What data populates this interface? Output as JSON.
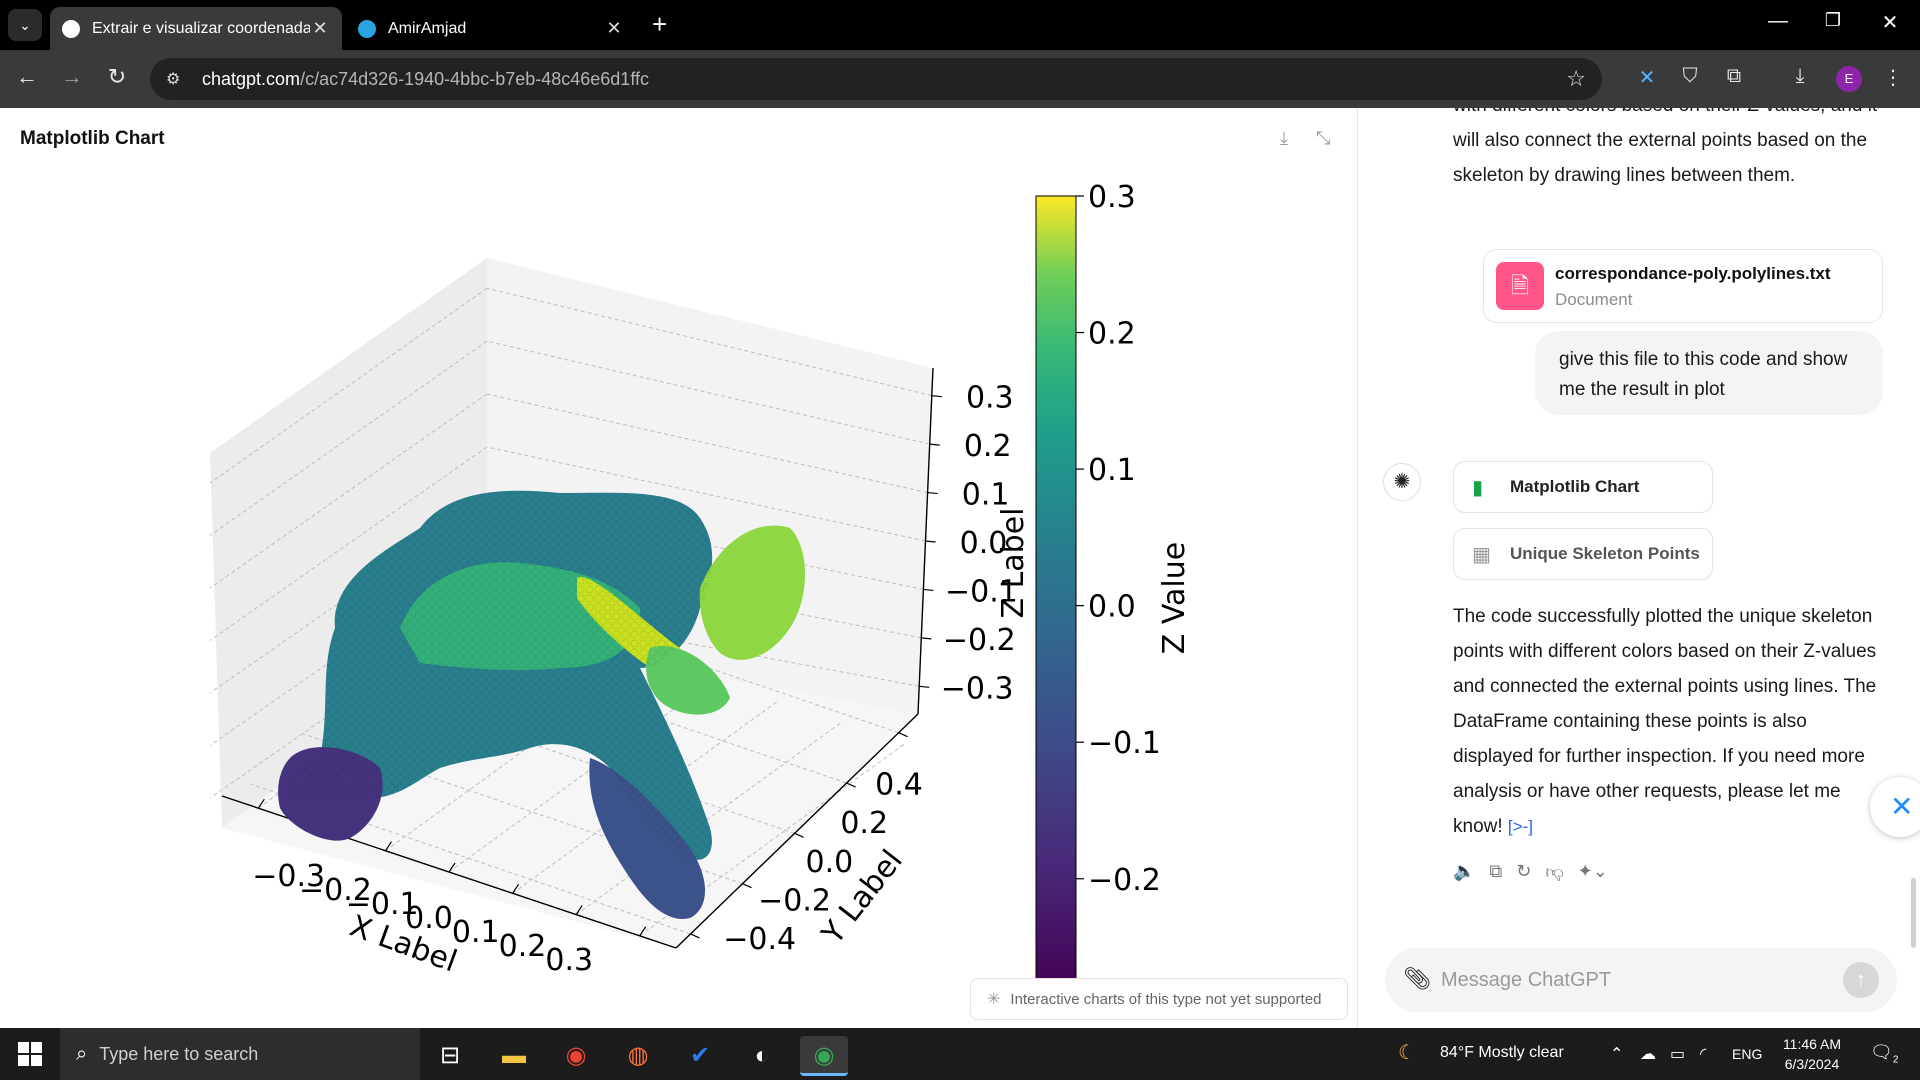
{
  "browser": {
    "tabs": [
      {
        "title": "Extrair e visualizar coordenadas",
        "active": true
      },
      {
        "title": "AmirAmjad",
        "active": false
      }
    ],
    "url_host": "chatgpt.com",
    "url_path": "/c/ac74d326-1940-4bbc-b7eb-48c46e6d1ffc",
    "profile_initial": "E"
  },
  "canvas": {
    "title": "Matplotlib Chart",
    "notice": "Interactive charts of this type not yet supported"
  },
  "chart_data": {
    "type": "scatter",
    "subtype": "3d-scatter-colored-by-z",
    "xlabel": "X Label",
    "ylabel": "Y Label",
    "zlabel": "Z Label",
    "colorbar_label": "Z Value",
    "colormap": "viridis",
    "x_ticks": [
      "−0.3",
      "−0.2",
      "−0.1",
      "0.0",
      "0.1",
      "0.2",
      "0.3"
    ],
    "y_ticks": [
      "−0.4",
      "−0.2",
      "0.0",
      "0.2",
      "0.4"
    ],
    "z_ticks": [
      "−0.3",
      "−0.2",
      "−0.1",
      "0.0",
      "0.1",
      "0.2",
      "0.3"
    ],
    "colorbar_ticks": [
      "0.3",
      "0.2",
      "0.1",
      "0.0",
      "−0.1",
      "−0.2"
    ],
    "colorbar_range": [
      -0.28,
      0.3
    ],
    "grid": true
  },
  "chat": {
    "intro_text": "with different colors based on their Z-values, and it will also connect the external points based on the skeleton by drawing lines between them.",
    "file_name": "correspondance-poly.polylines.txt",
    "file_type": "Document",
    "user_message": "give this file to this code and show me the result in plot",
    "artifact_1": "Matplotlib Chart",
    "artifact_2": "Unique Skeleton Points",
    "response": "The code successfully plotted the unique skeleton points with different colors based on their Z-values and connected the external points using lines. The DataFrame containing these points is also displayed for further inspection. If you need more analysis or have other requests, please let me know!",
    "citation": "[>-]",
    "composer_placeholder": "Message ChatGPT"
  },
  "taskbar": {
    "search_placeholder": "Type here to search",
    "weather": "84°F  Mostly clear",
    "language": "ENG",
    "time": "11:46 AM",
    "date": "6/3/2024",
    "notifications": "2"
  },
  "colors": {
    "viridis_low": "#440154",
    "viridis_mid": "#21918c",
    "viridis_high": "#fde725",
    "file_icon": "#ff5588",
    "chart_icon": "#16a34a"
  }
}
